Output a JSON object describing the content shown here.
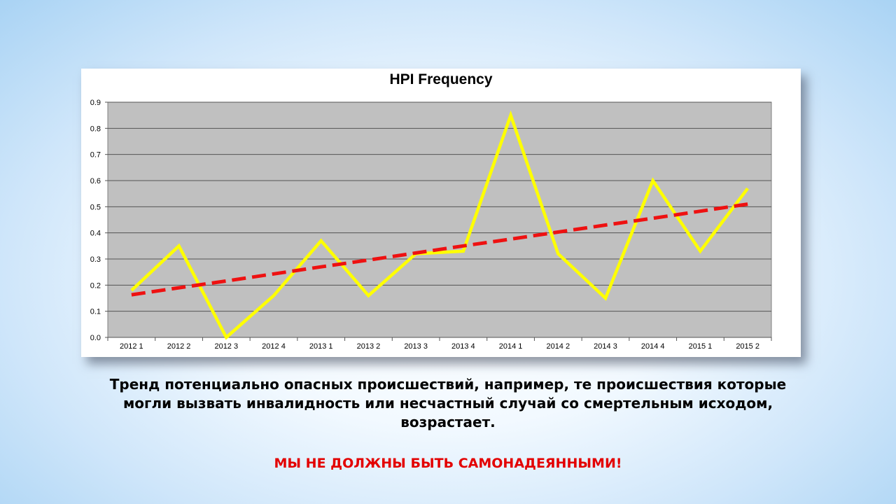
{
  "chart_data": {
    "type": "line",
    "title": "HPI Frequency",
    "categories": [
      "2012 1",
      "2012 2",
      "2012 3",
      "2012 4",
      "2013 1",
      "2013 2",
      "2013 3",
      "2013 4",
      "2014 1",
      "2014 2",
      "2014 3",
      "2014 4",
      "2015 1",
      "2015 2"
    ],
    "series": [
      {
        "values": [
          0.18,
          0.35,
          0.0,
          0.16,
          0.37,
          0.16,
          0.32,
          0.33,
          0.85,
          0.32,
          0.15,
          0.6,
          0.33,
          0.57
        ],
        "color": "#ffff00",
        "style": "solid"
      },
      {
        "values": [
          0.163,
          0.19,
          0.216,
          0.243,
          0.27,
          0.296,
          0.323,
          0.35,
          0.376,
          0.403,
          0.43,
          0.456,
          0.483,
          0.51
        ],
        "color": "#ee1111",
        "style": "dashed"
      }
    ],
    "ylim": [
      0,
      0.9
    ],
    "yticks": [
      "0.0",
      "0.1",
      "0.2",
      "0.3",
      "0.4",
      "0.5",
      "0.6",
      "0.7",
      "0.8",
      "0.9"
    ],
    "grid": true,
    "plot_background": "#c0c0c0",
    "legend": "none"
  },
  "caption": {
    "line1": "Тренд потенциально опасных происшествий, например, те происшествия которые",
    "line2": "могли вызвать инвалидность или несчастный случай со смертельным исходом,",
    "line3": "возрастает.",
    "warning": "МЫ НЕ ДОЛЖНЫ БЫТЬ САМОНАДЕЯННЫМИ!"
  }
}
